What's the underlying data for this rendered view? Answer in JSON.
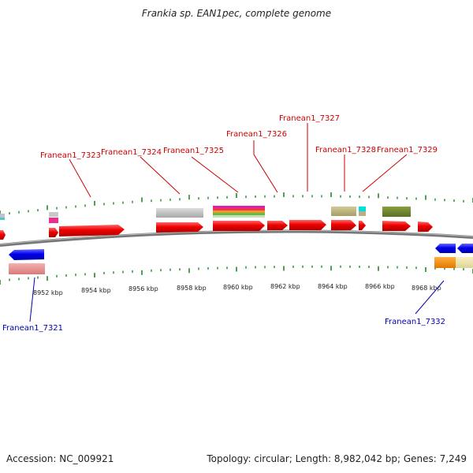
{
  "title": "Frankia sp. EAN1pec, complete genome",
  "accession": "Accession: NC_009921",
  "summary": "Topology: circular; Length: 8,982,042 bp; Genes: 7,249",
  "kbp_labels": [
    "8952 kbp",
    "8954 kbp",
    "8956 kbp",
    "8958 kbp",
    "8960 kbp",
    "8962 kbp",
    "8964 kbp",
    "8966 kbp",
    "8968 kbp"
  ],
  "gene_labels_top": [
    "Franean1_7323",
    "Franean1_7324",
    "Franean1_7325",
    "Franean1_7326",
    "Franean1_7327",
    "Franean1_7328",
    "Franean1_7329"
  ],
  "gene_labels_bottom": [
    "Franean1_7321",
    "Franean1_7332"
  ],
  "colors": {
    "gene_forward": "#ee0000",
    "gene_reverse": "#0000ee",
    "backbone": "#888888",
    "ticks": "#228b22",
    "label_top": "#cc0000",
    "label_bottom": "#0000aa"
  }
}
